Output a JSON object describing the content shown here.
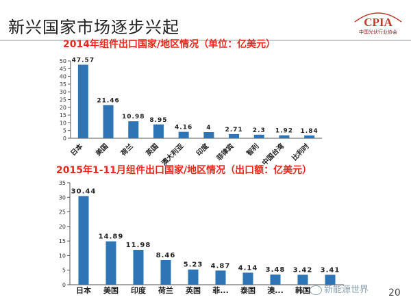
{
  "slide": {
    "title": "新兴国家市场逐步兴起",
    "page_number": "20",
    "watermark": "新能源世界",
    "logo_text": "CPIA",
    "logo_subtitle": "中国光伏行业协会",
    "logo_color": "#c0392b"
  },
  "chart_data": [
    {
      "type": "bar",
      "title": "2014年组件出口国家/地区情况（单位：亿美元）",
      "categories": [
        "日本",
        "美国",
        "荷兰",
        "英国",
        "澳大利亚",
        "印度",
        "菲律宾",
        "智利",
        "中国台湾",
        "比利时"
      ],
      "values": [
        47.57,
        21.46,
        10.98,
        8.95,
        4.16,
        4,
        2.71,
        2.3,
        1.92,
        1.84
      ],
      "ylim": [
        0,
        50
      ],
      "yticks": [
        0,
        5,
        10,
        15,
        20,
        25,
        30,
        35,
        40,
        45,
        50
      ],
      "bar_color": "#2e75b6",
      "title_color": "#e8281c",
      "grid": false
    },
    {
      "type": "bar",
      "title": "2015年1-11月组件出口国家/地区情况（出口额：亿美元）",
      "categories": [
        "日本",
        "美国",
        "印度",
        "荷兰",
        "英国",
        "菲...",
        "泰国",
        "澳...",
        "韩国",
        ""
      ],
      "values": [
        30.44,
        14.89,
        11.98,
        8.46,
        5.23,
        4.87,
        4.14,
        3.48,
        3.42,
        3.41
      ],
      "ylim": [
        0,
        35
      ],
      "yticks": [
        0,
        5,
        10,
        15,
        20,
        25,
        30,
        35
      ],
      "bar_color": "#2e75b6",
      "title_color": "#e8281c",
      "grid": false
    }
  ]
}
